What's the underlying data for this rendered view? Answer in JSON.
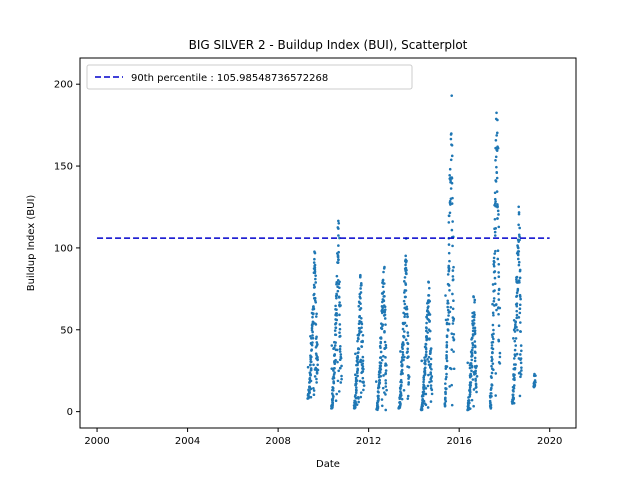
{
  "chart_data": {
    "type": "scatter",
    "title": "BIG SILVER 2 - Buildup Index (BUI), Scatterplot",
    "xlabel": "Date",
    "ylabel": "Buildup Index (BUI)",
    "xlim": [
      "1999-04-01",
      "2021-03-01"
    ],
    "ylim": [
      -10,
      216
    ],
    "xticks": [
      "2000",
      "2004",
      "2008",
      "2012",
      "2016",
      "2020"
    ],
    "yticks": [
      0,
      50,
      100,
      150,
      200
    ],
    "grid": false,
    "legend": {
      "placement": "upper-left",
      "entries": [
        "90th percentile : 105.98548736572268"
      ]
    },
    "reference_line": {
      "name": "90th percentile : 105.98548736572268",
      "y": 105.98548736572268,
      "x_start": "2000-01-01",
      "x_end": "2019-12-31",
      "color": "#0000cc",
      "style": "dashed"
    },
    "series": [
      {
        "name": "",
        "color": "#1f77b4",
        "seasons": [
          {
            "start": "2009-05-01",
            "end": "2009-09-30",
            "min": 8,
            "max": 104
          },
          {
            "start": "2010-05-15",
            "end": "2010-10-15",
            "min": 2,
            "max": 124
          },
          {
            "start": "2011-05-15",
            "end": "2011-10-10",
            "min": 2,
            "max": 91
          },
          {
            "start": "2012-05-15",
            "end": "2012-10-15",
            "min": 1,
            "max": 99
          },
          {
            "start": "2013-05-10",
            "end": "2013-10-10",
            "min": 2,
            "max": 110
          },
          {
            "start": "2014-05-01",
            "end": "2014-10-15",
            "min": 1,
            "max": 86
          },
          {
            "start": "2015-05-15",
            "end": "2015-10-10",
            "min": 3,
            "max": 200
          },
          {
            "start": "2016-05-20",
            "end": "2016-10-10",
            "min": 1,
            "max": 77
          },
          {
            "start": "2017-05-15",
            "end": "2017-10-15",
            "min": 2,
            "max": 206
          },
          {
            "start": "2018-05-10",
            "end": "2018-10-01",
            "min": 5,
            "max": 138
          },
          {
            "start": "2019-04-25",
            "end": "2019-05-10",
            "min": 15,
            "max": 25
          }
        ]
      }
    ]
  }
}
